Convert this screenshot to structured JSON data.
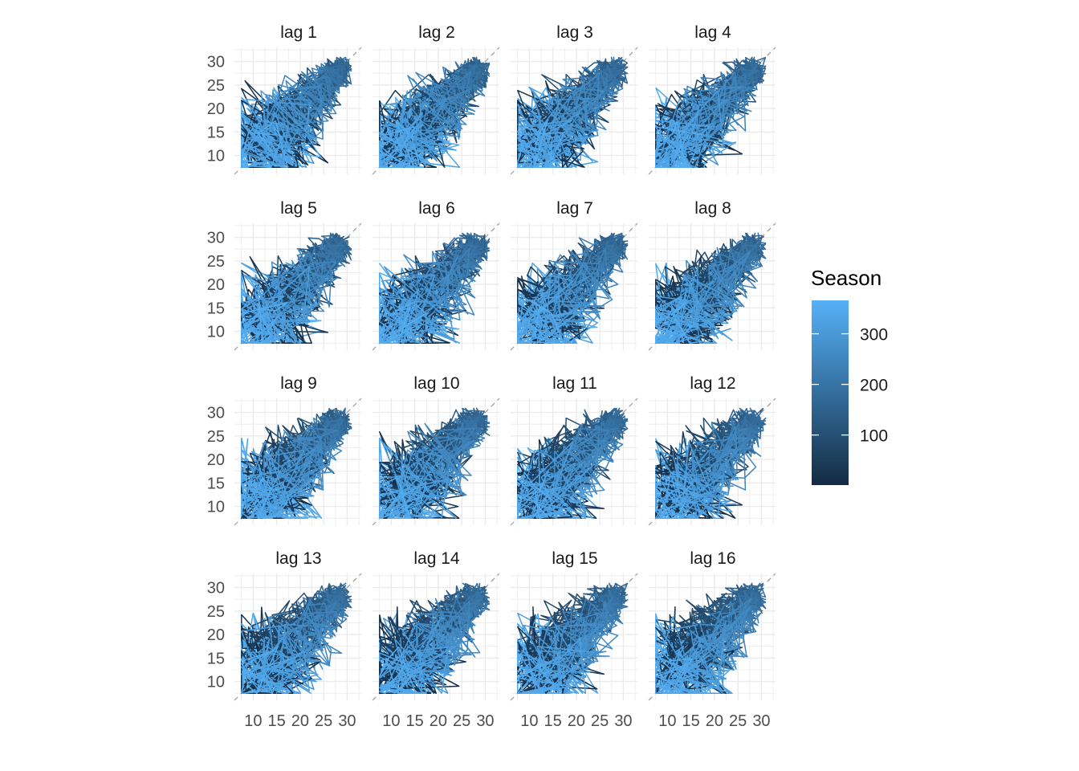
{
  "chart_data": {
    "type": "line",
    "panels": [
      "lag 1",
      "lag 2",
      "lag 3",
      "lag 4",
      "lag 5",
      "lag 6",
      "lag 7",
      "lag 8",
      "lag 9",
      "lag 10",
      "lag 11",
      "lag 12",
      "lag 13",
      "lag 14",
      "lag 15",
      "lag 16"
    ],
    "x_ticks": [
      10,
      15,
      20,
      25,
      30
    ],
    "y_ticks": [
      10,
      15,
      20,
      25,
      30
    ],
    "xlim": [
      6,
      33
    ],
    "ylim": [
      6,
      33
    ],
    "reference_line": "y = x (dashed)",
    "grid": true,
    "legend": {
      "title": "Season",
      "ticks": [
        100,
        200,
        300
      ],
      "range": [
        1,
        366
      ],
      "placement": "right",
      "color_low": "#132B43",
      "color_high": "#56B1F7"
    },
    "series_note": "Each panel plots value(t) against lagged value(t-k), path coloured by season (day of year)"
  }
}
